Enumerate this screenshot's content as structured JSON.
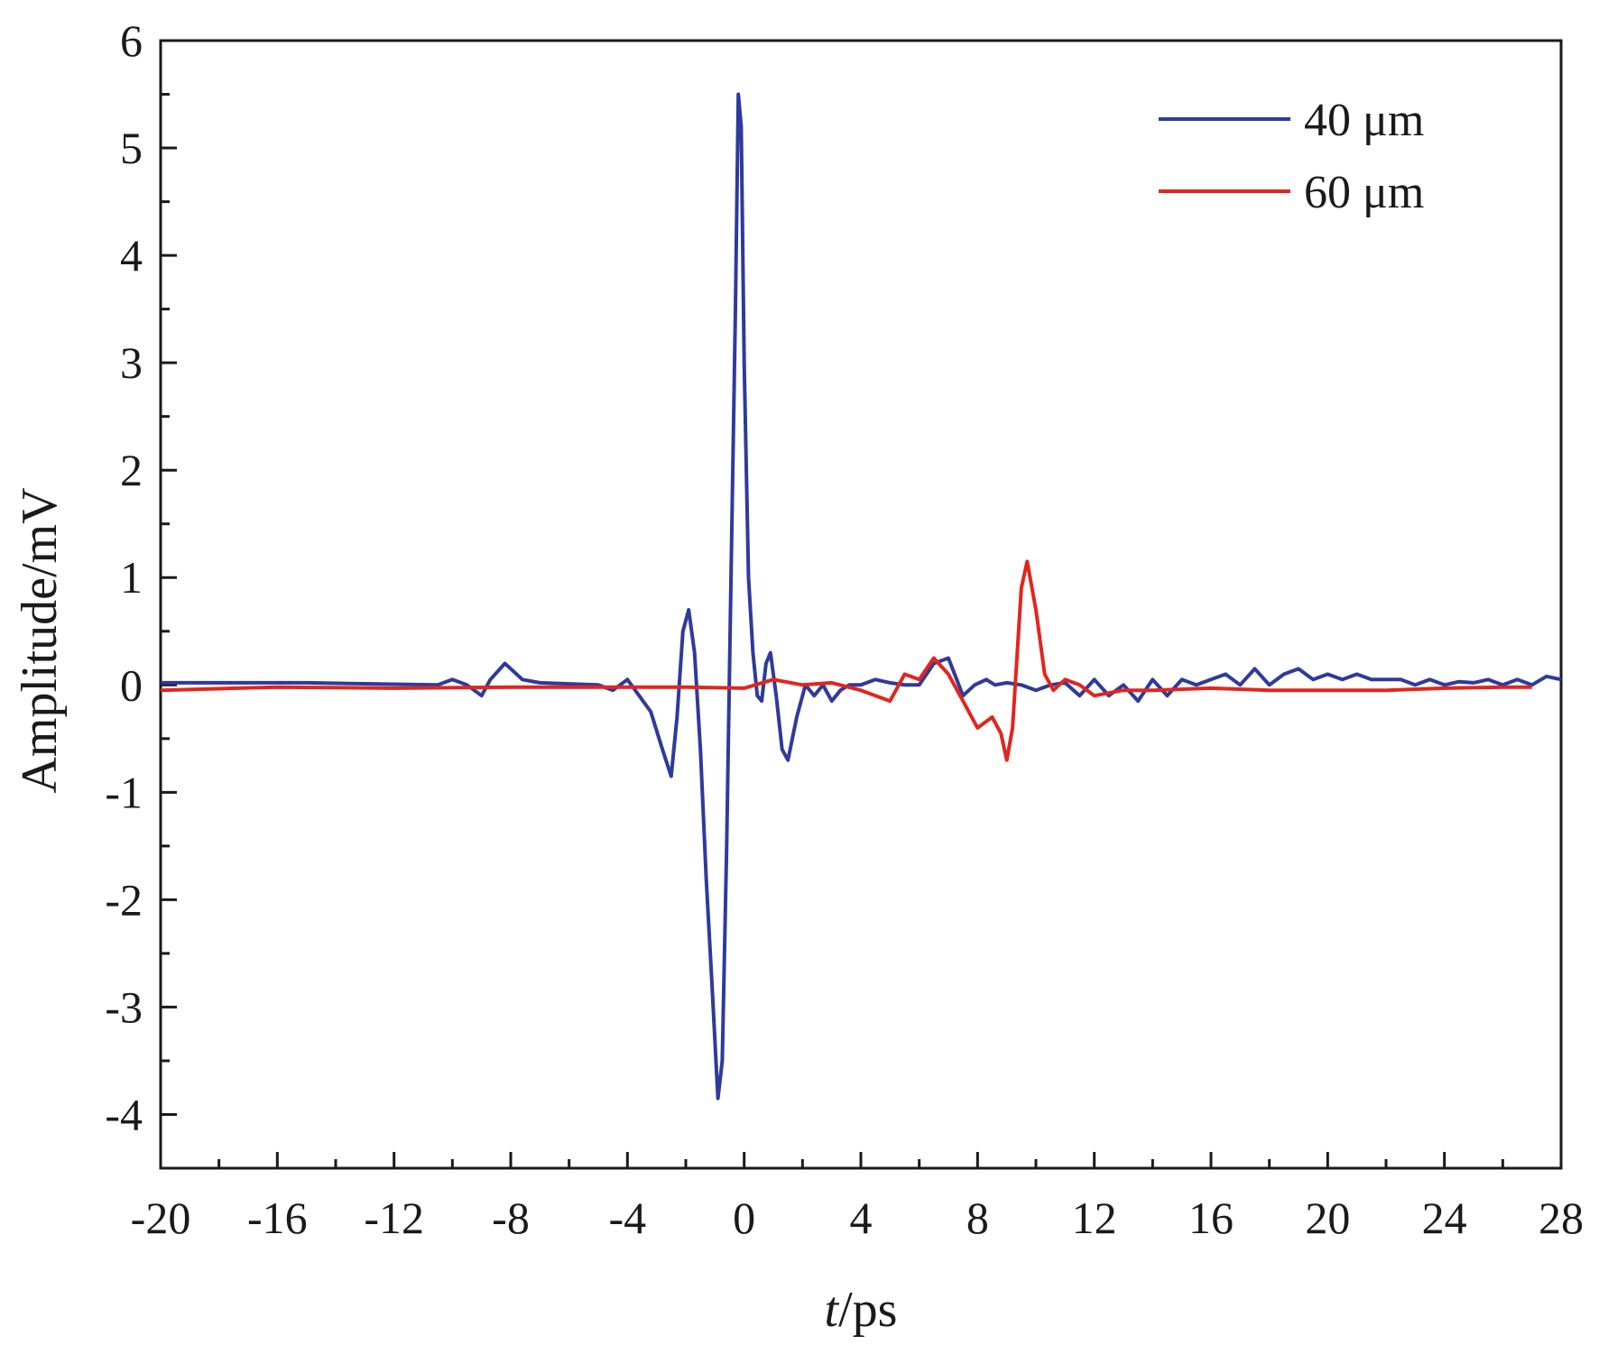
{
  "chart_data": {
    "type": "line",
    "xlabel_italic": "t",
    "xlabel_rest": "/ps",
    "ylabel": "Amplitude/mV",
    "xlim": [
      -20,
      28
    ],
    "ylim": [
      -4.5,
      6
    ],
    "xticks": [
      -20,
      -16,
      -12,
      -8,
      -4,
      0,
      4,
      8,
      12,
      16,
      20,
      24,
      28
    ],
    "xtick_labels": [
      "-20",
      "-16",
      "-12",
      "-8",
      "-4",
      "0",
      "4",
      "8",
      "12",
      "16",
      "20",
      "24",
      "28"
    ],
    "yticks": [
      -4,
      -3,
      -2,
      -1,
      0,
      1,
      2,
      3,
      4,
      5,
      6
    ],
    "ytick_labels": [
      "-4",
      "-3",
      "-2",
      "-1",
      "0",
      "1",
      "2",
      "3",
      "4",
      "5",
      "6"
    ],
    "grid": false,
    "legend_position": "top-right",
    "series": [
      {
        "name": "40 μm",
        "color": "#2e3a9c",
        "x": [
          -20,
          -15,
          -10.5,
          -10,
          -9.5,
          -9,
          -8.7,
          -8.2,
          -8,
          -7.6,
          -7,
          -6,
          -5,
          -4.5,
          -4,
          -3.6,
          -3.2,
          -2.8,
          -2.5,
          -2.3,
          -2.1,
          -1.9,
          -1.7,
          -1.5,
          -1.3,
          -1.1,
          -0.9,
          -0.75,
          -0.6,
          -0.45,
          -0.3,
          -0.2,
          -0.1,
          0,
          0.15,
          0.3,
          0.45,
          0.6,
          0.75,
          0.9,
          1.1,
          1.3,
          1.5,
          1.8,
          2.1,
          2.4,
          2.7,
          3,
          3.3,
          3.6,
          4,
          4.5,
          5,
          5.5,
          6,
          6.5,
          7,
          7.5,
          7.9,
          8.3,
          8.6,
          9,
          9.5,
          10,
          10.5,
          11,
          11.5,
          12,
          12.5,
          13,
          13.5,
          14,
          14.5,
          15,
          15.5,
          16,
          16.5,
          17,
          17.5,
          18,
          18.5,
          19,
          19.5,
          20,
          20.5,
          21,
          21.5,
          22,
          22.5,
          23,
          23.5,
          24,
          24.5,
          25,
          25.5,
          26,
          26.5,
          27,
          27.5,
          28
        ],
        "y": [
          0.02,
          0.02,
          0,
          0.05,
          0,
          -0.1,
          0.05,
          0.2,
          0.15,
          0.05,
          0.02,
          0.01,
          0,
          -0.05,
          0.05,
          -0.1,
          -0.25,
          -0.6,
          -0.85,
          -0.3,
          0.5,
          0.7,
          0.3,
          -0.6,
          -1.8,
          -2.8,
          -3.85,
          -3.5,
          -1.5,
          1.0,
          3.5,
          5.5,
          5.2,
          3.0,
          1.0,
          0.3,
          -0.1,
          -0.15,
          0.2,
          0.3,
          -0.1,
          -0.6,
          -0.7,
          -0.3,
          0.0,
          -0.1,
          0.0,
          -0.15,
          -0.05,
          0.0,
          0.0,
          0.05,
          0.02,
          0.0,
          0.0,
          0.2,
          0.25,
          -0.1,
          0.0,
          0.05,
          0.0,
          0.02,
          0.0,
          -0.05,
          0.0,
          0.02,
          -0.1,
          0.05,
          -0.1,
          0.0,
          -0.15,
          0.05,
          -0.1,
          0.05,
          0.0,
          0.05,
          0.1,
          0.0,
          0.15,
          0.0,
          0.1,
          0.15,
          0.05,
          0.1,
          0.05,
          0.1,
          0.05,
          0.05,
          0.05,
          0.0,
          0.05,
          0.0,
          0.03,
          0.02,
          0.05,
          0.0,
          0.05,
          0.0,
          0.08,
          0.05
        ]
      },
      {
        "name": "60 μm",
        "color": "#e0261f",
        "x": [
          -20,
          -16,
          -12,
          -8,
          -4,
          -2,
          0,
          1,
          2,
          3,
          4,
          4.5,
          5,
          5.5,
          6,
          6.5,
          7,
          7.5,
          8,
          8.5,
          8.8,
          9,
          9.2,
          9.5,
          9.7,
          10,
          10.3,
          10.6,
          11,
          11.5,
          12,
          13,
          14,
          16,
          18,
          20,
          22,
          24,
          26,
          27
        ],
        "y": [
          -0.05,
          -0.02,
          -0.03,
          -0.02,
          -0.02,
          -0.02,
          -0.03,
          0.05,
          0.0,
          0.02,
          -0.05,
          -0.1,
          -0.15,
          0.1,
          0.05,
          0.25,
          0.1,
          -0.15,
          -0.4,
          -0.3,
          -0.45,
          -0.7,
          -0.4,
          0.9,
          1.15,
          0.7,
          0.1,
          -0.05,
          0.05,
          0.0,
          -0.1,
          -0.05,
          -0.05,
          -0.03,
          -0.05,
          -0.05,
          -0.05,
          -0.03,
          -0.02,
          -0.02
        ]
      }
    ]
  }
}
